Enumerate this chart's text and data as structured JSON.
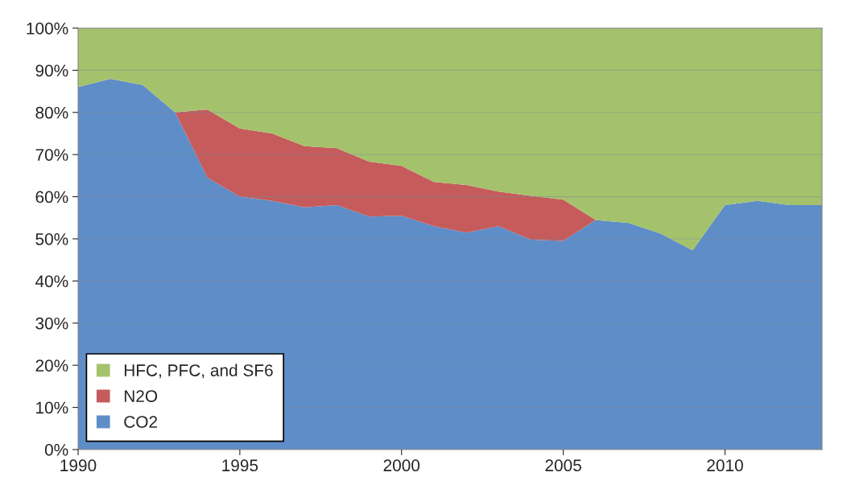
{
  "chart_data": {
    "type": "area",
    "stacked": true,
    "x": [
      1990,
      1991,
      1992,
      1993,
      1994,
      1995,
      1996,
      1997,
      1998,
      1999,
      2000,
      2001,
      2002,
      2003,
      2004,
      2005,
      2006,
      2007,
      2008,
      2009,
      2010,
      2011,
      2012,
      2013
    ],
    "series": [
      {
        "name": "CO2",
        "color": "#5f8dc8",
        "values": [
          86,
          88,
          86.5,
          80,
          64.5,
          60,
          59,
          57.5,
          58,
          55.3,
          55.5,
          53,
          51.5,
          53,
          49.8,
          49.5,
          54.5,
          53.8,
          51.3,
          47.3,
          58,
          59,
          58,
          58
        ]
      },
      {
        "name": "N2O",
        "color": "#c65b5b",
        "values": [
          0,
          0,
          0,
          0,
          16.2,
          16.2,
          16,
          14.5,
          13.5,
          13,
          11.8,
          10.5,
          11.3,
          8.2,
          10.4,
          9.8,
          0,
          0,
          0,
          0,
          0,
          0,
          0,
          0
        ]
      },
      {
        "name": "HFC, PFC, and SF6",
        "color": "#a4c26c",
        "values": [
          14,
          12,
          13.5,
          20,
          19.3,
          23.8,
          25,
          28,
          28.5,
          31.7,
          32.7,
          36.5,
          37.2,
          38.8,
          39.8,
          40.7,
          45.5,
          46.2,
          48.7,
          52.7,
          42,
          41,
          42,
          42
        ]
      }
    ],
    "xlim": [
      1990,
      2013
    ],
    "xticks": [
      1990,
      1995,
      2000,
      2005,
      2010
    ],
    "ylim": [
      0,
      100
    ],
    "yticks": [
      {
        "value": 0,
        "label": "0%"
      },
      {
        "value": 10,
        "label": "10%"
      },
      {
        "value": 20,
        "label": "20%"
      },
      {
        "value": 30,
        "label": "30%"
      },
      {
        "value": 40,
        "label": "40%"
      },
      {
        "value": 50,
        "label": "50%"
      },
      {
        "value": 60,
        "label": "60%"
      },
      {
        "value": 70,
        "label": "70%"
      },
      {
        "value": 80,
        "label": "80%"
      },
      {
        "value": 90,
        "label": "90%"
      },
      {
        "value": 100,
        "label": "100%"
      }
    ],
    "grid": "y",
    "legend": "bottom left"
  }
}
